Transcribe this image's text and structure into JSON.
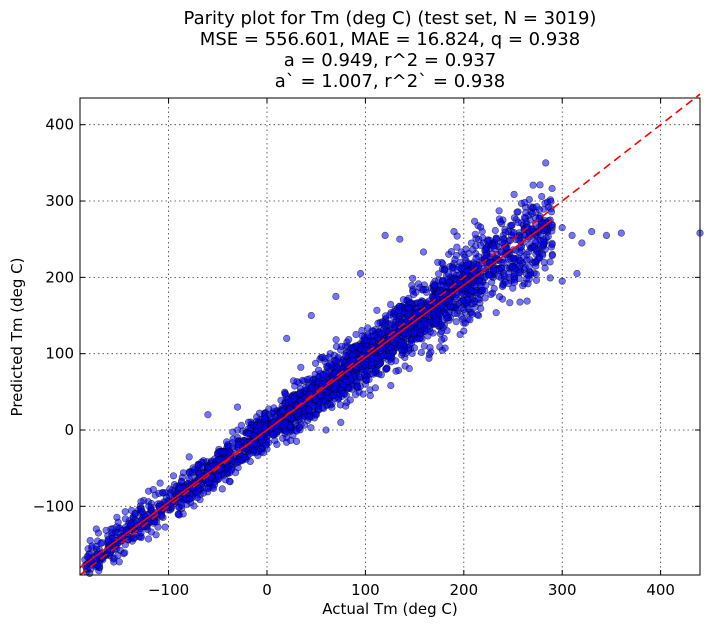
{
  "chart_data": {
    "type": "scatter",
    "title_lines": [
      "Parity plot for Tm (deg C) (test set, N = 3019)",
      "MSE = 556.601, MAE = 16.824, q = 0.938",
      "a = 0.949, r^2 = 0.937",
      "a` = 1.007, r^2` = 0.938"
    ],
    "xlabel": "Actual Tm (deg C)",
    "ylabel": "Predicted Tm (deg C)",
    "xlim": [
      -190,
      440
    ],
    "ylim": [
      -190,
      435
    ],
    "xticks": [
      -100,
      0,
      100,
      200,
      300,
      400
    ],
    "xtick_labels": [
      "−100",
      "0",
      "100",
      "200",
      "300",
      "400"
    ],
    "yticks": [
      -100,
      0,
      100,
      200,
      300,
      400
    ],
    "ytick_labels": [
      "−100",
      "0",
      "100",
      "200",
      "300",
      "400"
    ],
    "grid": true,
    "n_points": 3019,
    "point_color": "#0000ff",
    "point_opacity": 0.55,
    "point_edge_color": "#000000",
    "fit_line": {
      "slope": 0.949,
      "intercept": 0.0,
      "x_range": [
        -190,
        290
      ],
      "color": "#ff0000",
      "style": "solid"
    },
    "parity_line": {
      "slope": 1.0,
      "intercept": 0.0,
      "x_range": [
        -190,
        440
      ],
      "color": "#ff0000",
      "style": "dashed"
    },
    "points_sample": [
      [
        -185,
        -170
      ],
      [
        -180,
        -162
      ],
      [
        -170,
        -180
      ],
      [
        -160,
        -150
      ],
      [
        -150,
        -145
      ],
      [
        -140,
        -128
      ],
      [
        -130,
        -140
      ],
      [
        -120,
        -110
      ],
      [
        -110,
        -100
      ],
      [
        -100,
        -92
      ],
      [
        -95,
        -60
      ],
      [
        -90,
        -110
      ],
      [
        -80,
        -70
      ],
      [
        -70,
        -45
      ],
      [
        -60,
        -58
      ],
      [
        -50,
        -30
      ],
      [
        -40,
        -48
      ],
      [
        -30,
        -10
      ],
      [
        -20,
        -35
      ],
      [
        -10,
        -5
      ],
      [
        0,
        10
      ],
      [
        0,
        -25
      ],
      [
        10,
        25
      ],
      [
        20,
        -10
      ],
      [
        30,
        45
      ],
      [
        40,
        20
      ],
      [
        50,
        60
      ],
      [
        55,
        95
      ],
      [
        60,
        40
      ],
      [
        70,
        80
      ],
      [
        80,
        110
      ],
      [
        90,
        70
      ],
      [
        100,
        120
      ],
      [
        110,
        85
      ],
      [
        120,
        140
      ],
      [
        130,
        110
      ],
      [
        140,
        160
      ],
      [
        150,
        120
      ],
      [
        160,
        190
      ],
      [
        170,
        150
      ],
      [
        180,
        210
      ],
      [
        190,
        165
      ],
      [
        200,
        230
      ],
      [
        210,
        180
      ],
      [
        220,
        245
      ],
      [
        230,
        200
      ],
      [
        240,
        255
      ],
      [
        250,
        215
      ],
      [
        260,
        245
      ],
      [
        270,
        260
      ],
      [
        280,
        240
      ],
      [
        290,
        230
      ],
      [
        300,
        265
      ],
      [
        310,
        255
      ],
      [
        320,
        245
      ],
      [
        330,
        260
      ],
      [
        345,
        255
      ],
      [
        360,
        258
      ],
      [
        440,
        258
      ],
      [
        120,
        255
      ],
      [
        135,
        250
      ],
      [
        95,
        205
      ],
      [
        70,
        175
      ],
      [
        45,
        150
      ],
      [
        20,
        120
      ],
      [
        200,
        140
      ],
      [
        215,
        150
      ],
      [
        160,
        110
      ],
      [
        140,
        95
      ],
      [
        60,
        0
      ],
      [
        30,
        -15
      ],
      [
        -60,
        20
      ],
      [
        -30,
        30
      ],
      [
        100,
        60
      ],
      [
        180,
        120
      ],
      [
        240,
        190
      ],
      [
        190,
        260
      ],
      [
        300,
        195
      ],
      [
        315,
        205
      ],
      [
        105,
        45
      ],
      [
        75,
        10
      ]
    ]
  }
}
